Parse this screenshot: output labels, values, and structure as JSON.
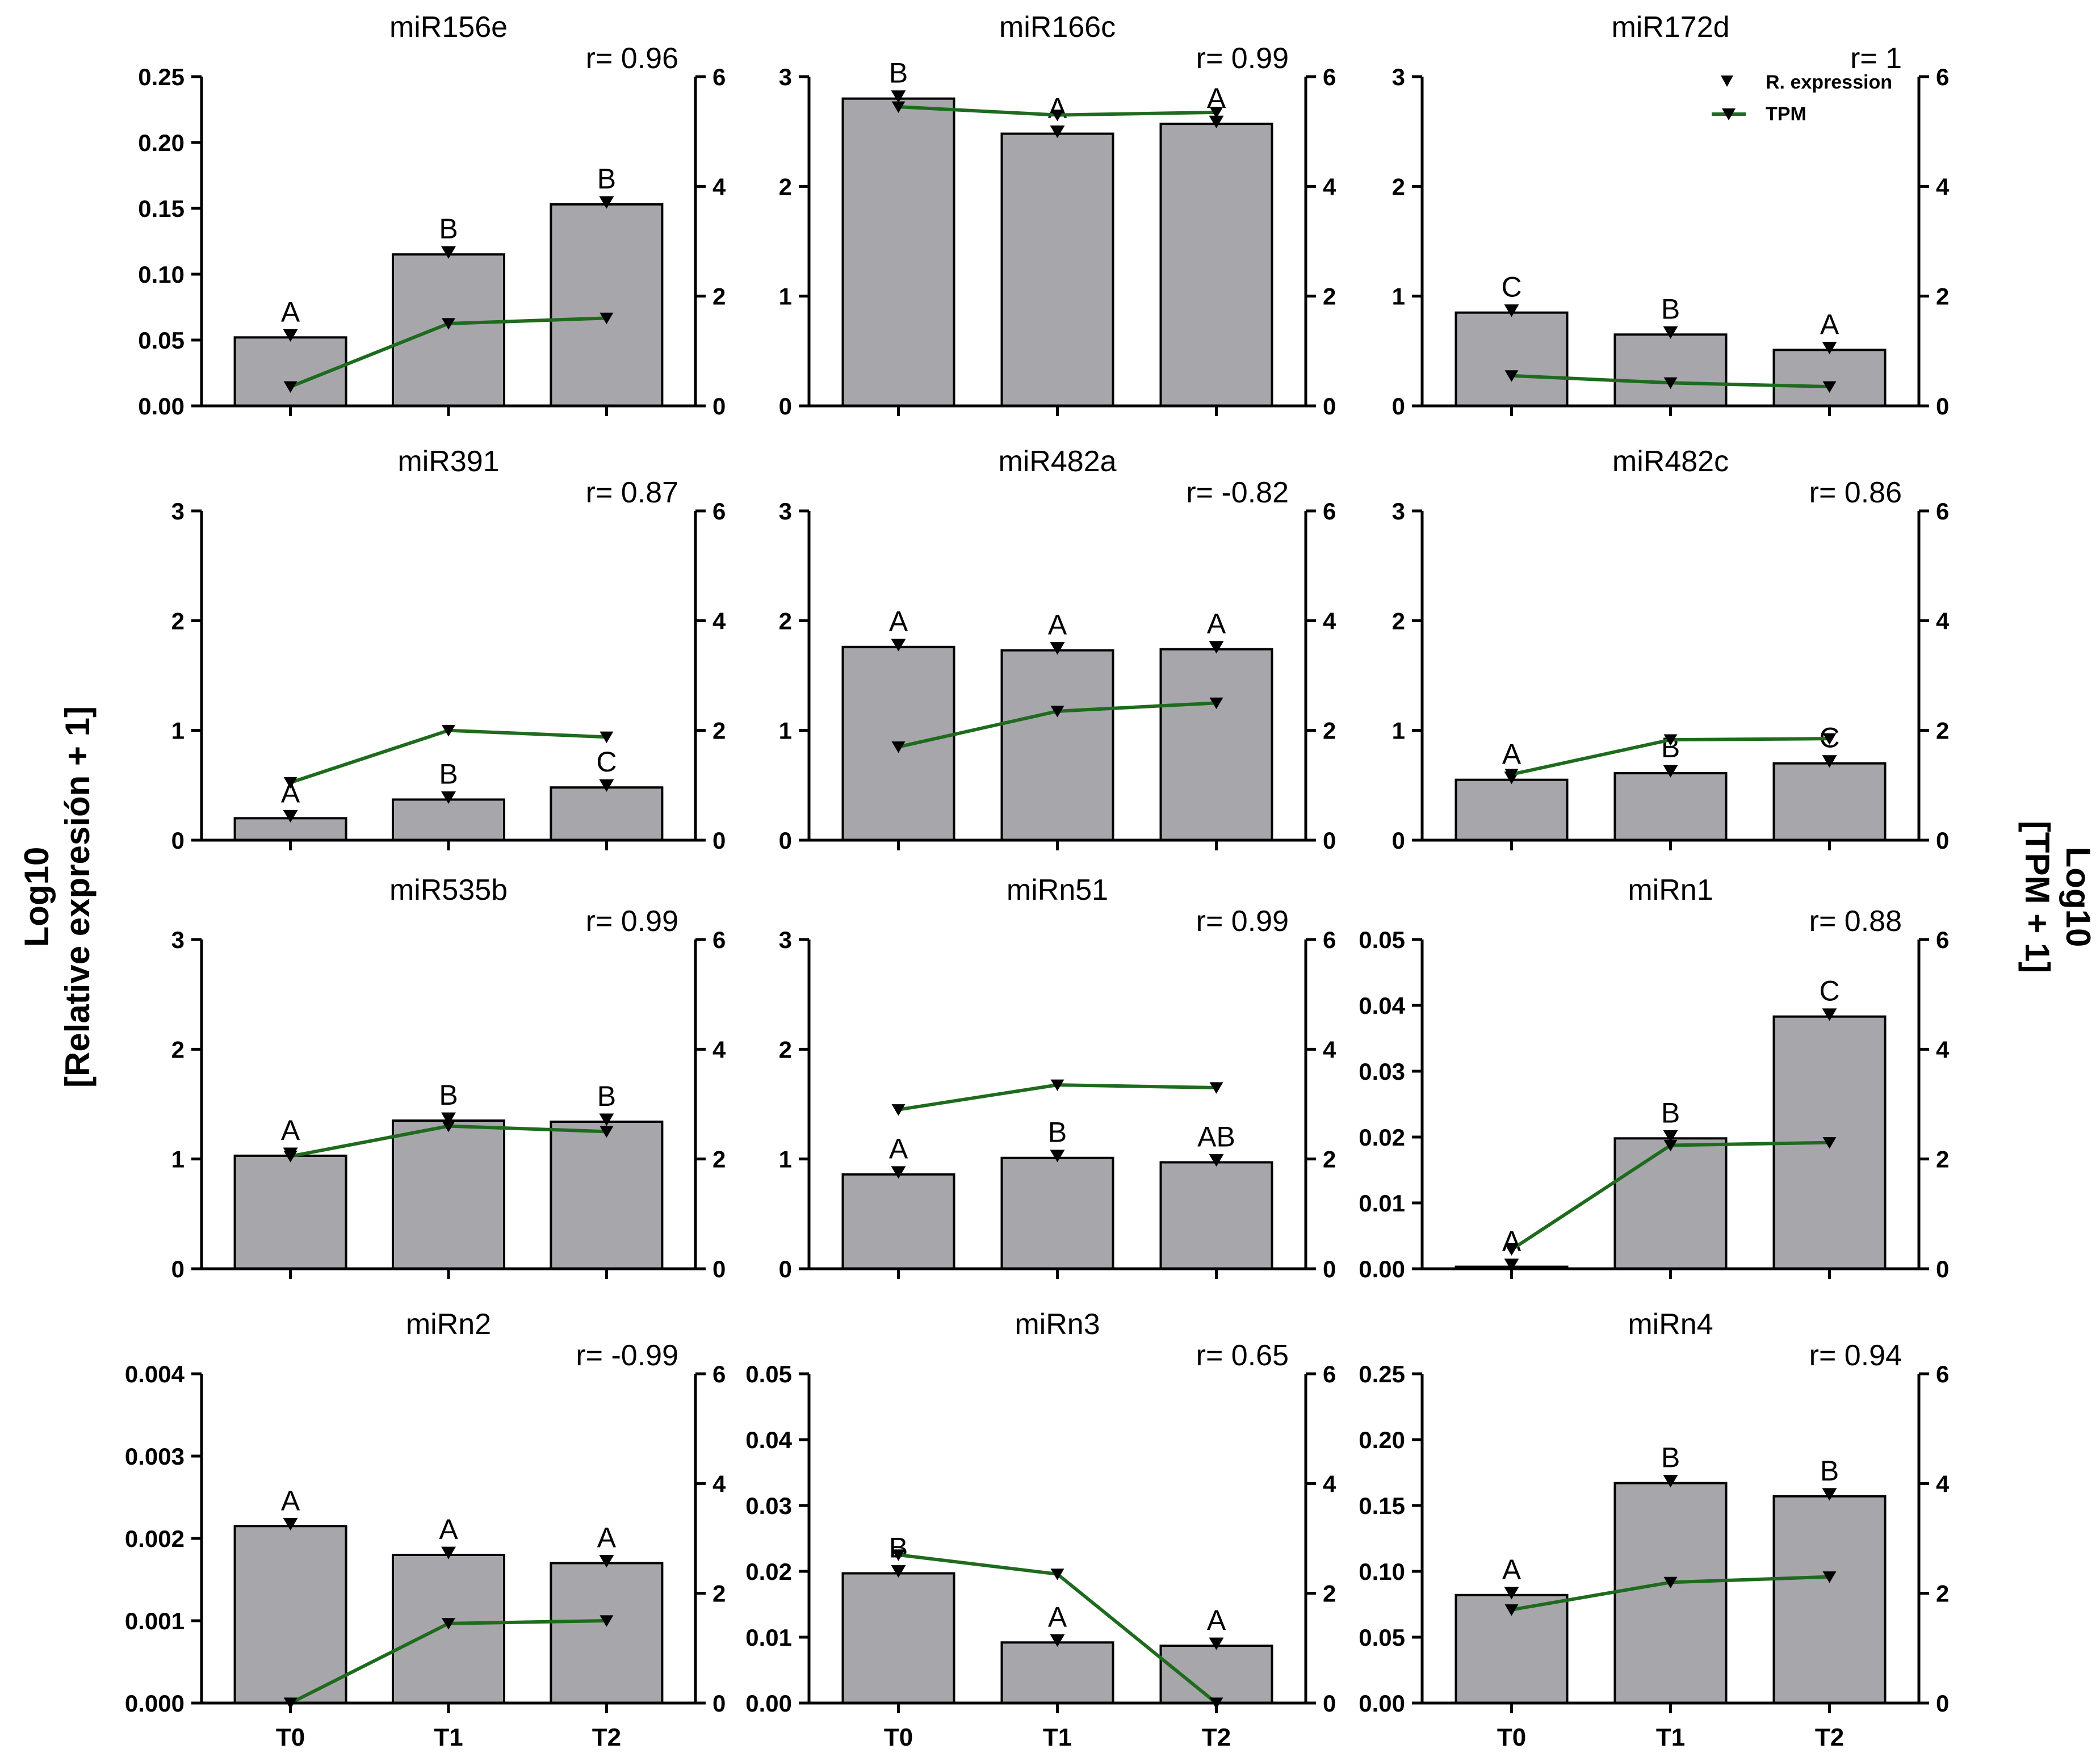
{
  "figure": {
    "left_axis_title_line1": "Log10",
    "left_axis_title_line2": "[Relative expresión + 1]",
    "right_axis_title_line1": "Log10",
    "right_axis_title_line2": "[TPM + 1]",
    "legend": [
      {
        "label": "R. expression",
        "marker": "down-triangle-icon"
      },
      {
        "label": "TPM",
        "marker": "line-down-triangle-icon"
      }
    ]
  },
  "colors": {
    "bar": "#a7a6ab",
    "tpm_line": "#1e6b1e",
    "axis": "#000000"
  },
  "chart_data": [
    {
      "type": "bar+line",
      "title": "miR156e",
      "r_label": "r= 0.96",
      "categories": [
        "T0",
        "T1",
        "T2"
      ],
      "left_ticks": [
        "0.00",
        "0.05",
        "0.10",
        "0.15",
        "0.20",
        "0.25"
      ],
      "left_range": [
        0,
        0.25
      ],
      "right_ticks": [
        "0",
        "2",
        "4",
        "6"
      ],
      "right_range": [
        0,
        6
      ],
      "series": [
        {
          "name": "R. expression",
          "values": [
            0.052,
            0.115,
            0.153
          ]
        },
        {
          "name": "TPM",
          "values": [
            0.35,
            1.5,
            1.6
          ]
        }
      ],
      "letters": [
        "A",
        "B",
        "B"
      ]
    },
    {
      "type": "bar+line",
      "title": "miR166c",
      "r_label": "r= 0.99",
      "categories": [
        "T0",
        "T1",
        "T2"
      ],
      "left_ticks": [
        "0",
        "1",
        "2",
        "3"
      ],
      "left_range": [
        0,
        3
      ],
      "right_ticks": [
        "0",
        "2",
        "4",
        "6"
      ],
      "right_range": [
        0,
        6
      ],
      "series": [
        {
          "name": "R. expression",
          "values": [
            2.8,
            2.48,
            2.57
          ]
        },
        {
          "name": "TPM",
          "values": [
            5.45,
            5.3,
            5.35
          ]
        }
      ],
      "letters": [
        "B",
        "A",
        "A"
      ]
    },
    {
      "type": "bar+line",
      "title": "miR172d",
      "r_label": "r= 1",
      "categories": [
        "T0",
        "T1",
        "T2"
      ],
      "left_ticks": [
        "0",
        "1",
        "2",
        "3"
      ],
      "left_range": [
        0,
        3
      ],
      "right_ticks": [
        "0",
        "2",
        "4",
        "6"
      ],
      "right_range": [
        0,
        6
      ],
      "series": [
        {
          "name": "R. expression",
          "values": [
            0.85,
            0.65,
            0.51
          ]
        },
        {
          "name": "TPM",
          "values": [
            0.55,
            0.42,
            0.35
          ]
        }
      ],
      "letters": [
        "C",
        "B",
        "A"
      ]
    },
    {
      "type": "bar+line",
      "title": "miR391",
      "r_label": "r= 0.87",
      "categories": [
        "T0",
        "T1",
        "T2"
      ],
      "left_ticks": [
        "0",
        "1",
        "2",
        "3"
      ],
      "left_range": [
        0,
        3
      ],
      "right_ticks": [
        "0",
        "2",
        "4",
        "6"
      ],
      "right_range": [
        0,
        6
      ],
      "series": [
        {
          "name": "R. expression",
          "values": [
            0.2,
            0.37,
            0.48
          ]
        },
        {
          "name": "TPM",
          "values": [
            1.05,
            2.0,
            1.88
          ]
        }
      ],
      "letters": [
        "A",
        "B",
        "C"
      ]
    },
    {
      "type": "bar+line",
      "title": "miR482a",
      "r_label": "r= -0.82",
      "categories": [
        "T0",
        "T1",
        "T2"
      ],
      "left_ticks": [
        "0",
        "1",
        "2",
        "3"
      ],
      "left_range": [
        0,
        3
      ],
      "right_ticks": [
        "0",
        "2",
        "4",
        "6"
      ],
      "right_range": [
        0,
        6
      ],
      "series": [
        {
          "name": "R. expression",
          "values": [
            1.76,
            1.73,
            1.74
          ]
        },
        {
          "name": "TPM",
          "values": [
            1.7,
            2.35,
            2.5
          ]
        }
      ],
      "letters": [
        "A",
        "A",
        "A"
      ]
    },
    {
      "type": "bar+line",
      "title": "miR482c",
      "r_label": "r= 0.86",
      "categories": [
        "T0",
        "T1",
        "T2"
      ],
      "left_ticks": [
        "0",
        "1",
        "2",
        "3"
      ],
      "left_range": [
        0,
        3
      ],
      "right_ticks": [
        "0",
        "2",
        "4",
        "6"
      ],
      "right_range": [
        0,
        6
      ],
      "series": [
        {
          "name": "R. expression",
          "values": [
            0.55,
            0.61,
            0.7
          ]
        },
        {
          "name": "TPM",
          "values": [
            1.2,
            1.83,
            1.85
          ]
        }
      ],
      "letters": [
        "A",
        "B",
        "C"
      ]
    },
    {
      "type": "bar+line",
      "title": "miR535b",
      "r_label": "r= 0.99",
      "categories": [
        "T0",
        "T1",
        "T2"
      ],
      "left_ticks": [
        "0",
        "1",
        "2",
        "3"
      ],
      "left_range": [
        0,
        3
      ],
      "right_ticks": [
        "0",
        "2",
        "4",
        "6"
      ],
      "right_range": [
        0,
        6
      ],
      "series": [
        {
          "name": "R. expression",
          "values": [
            1.03,
            1.35,
            1.34
          ]
        },
        {
          "name": "TPM",
          "values": [
            2.05,
            2.6,
            2.5
          ]
        }
      ],
      "letters": [
        "A",
        "B",
        "B"
      ]
    },
    {
      "type": "bar+line",
      "title": "miRn51",
      "r_label": "r= 0.99",
      "categories": [
        "T0",
        "T1",
        "T2"
      ],
      "left_ticks": [
        "0",
        "1",
        "2",
        "3"
      ],
      "left_range": [
        0,
        3
      ],
      "right_ticks": [
        "0",
        "2",
        "4",
        "6"
      ],
      "right_range": [
        0,
        6
      ],
      "series": [
        {
          "name": "R. expression",
          "values": [
            0.86,
            1.01,
            0.97
          ]
        },
        {
          "name": "TPM",
          "values": [
            2.9,
            3.35,
            3.3
          ]
        }
      ],
      "letters": [
        "A",
        "B",
        "AB"
      ]
    },
    {
      "type": "bar+line",
      "title": "miRn1",
      "r_label": "r= 0.88",
      "categories": [
        "T0",
        "T1",
        "T2"
      ],
      "left_ticks": [
        "0.00",
        "0.01",
        "0.02",
        "0.03",
        "0.04",
        "0.05"
      ],
      "left_range": [
        0,
        0.05
      ],
      "right_ticks": [
        "0",
        "2",
        "4",
        "6"
      ],
      "right_range": [
        0,
        6
      ],
      "series": [
        {
          "name": "R. expression",
          "values": [
            0.0003,
            0.0198,
            0.0383
          ]
        },
        {
          "name": "TPM",
          "values": [
            0.35,
            2.25,
            2.3
          ]
        }
      ],
      "letters": [
        "A",
        "B",
        "C"
      ]
    },
    {
      "type": "bar+line",
      "title": "miRn2",
      "r_label": "r= -0.99",
      "categories": [
        "T0",
        "T1",
        "T2"
      ],
      "left_ticks": [
        "0.000",
        "0.001",
        "0.002",
        "0.003",
        "0.004"
      ],
      "left_range": [
        0,
        0.004
      ],
      "right_ticks": [
        "0",
        "2",
        "4",
        "6"
      ],
      "right_range": [
        0,
        6
      ],
      "series": [
        {
          "name": "R. expression",
          "values": [
            0.00215,
            0.0018,
            0.0017
          ]
        },
        {
          "name": "TPM",
          "values": [
            0,
            1.45,
            1.5
          ]
        }
      ],
      "letters": [
        "A",
        "A",
        "A"
      ]
    },
    {
      "type": "bar+line",
      "title": "miRn3",
      "r_label": "r= 0.65",
      "categories": [
        "T0",
        "T1",
        "T2"
      ],
      "left_ticks": [
        "0.00",
        "0.01",
        "0.02",
        "0.03",
        "0.04",
        "0.05"
      ],
      "left_range": [
        0,
        0.05
      ],
      "right_ticks": [
        "0",
        "2",
        "4",
        "6"
      ],
      "right_range": [
        0,
        6
      ],
      "series": [
        {
          "name": "R. expression",
          "values": [
            0.0197,
            0.0092,
            0.0087
          ]
        },
        {
          "name": "TPM",
          "values": [
            2.7,
            2.35,
            0
          ]
        }
      ],
      "letters": [
        "B",
        "A",
        "A"
      ]
    },
    {
      "type": "bar+line",
      "title": "miRn4",
      "r_label": "r= 0.94",
      "categories": [
        "T0",
        "T1",
        "T2"
      ],
      "left_ticks": [
        "0.00",
        "0.05",
        "0.10",
        "0.15",
        "0.20",
        "0.25"
      ],
      "left_range": [
        0,
        0.25
      ],
      "right_ticks": [
        "0",
        "2",
        "4",
        "6"
      ],
      "right_range": [
        0,
        6
      ],
      "series": [
        {
          "name": "R. expression",
          "values": [
            0.082,
            0.167,
            0.157
          ]
        },
        {
          "name": "TPM",
          "values": [
            1.7,
            2.2,
            2.3
          ]
        }
      ],
      "letters": [
        "A",
        "B",
        "B"
      ]
    }
  ]
}
